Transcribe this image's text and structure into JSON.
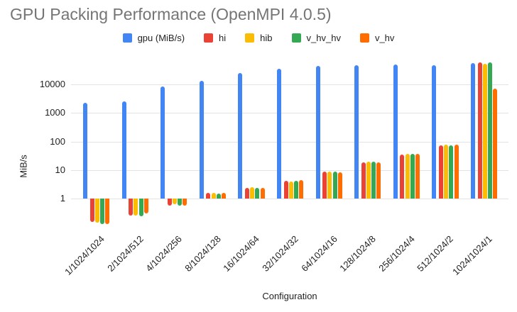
{
  "chart_data": {
    "type": "bar",
    "title": "GPU Packing Performance (OpenMPI 4.0.5)",
    "xlabel": "Configuration",
    "ylabel": "MiB/s",
    "y_scale": "log",
    "y_ticks": [
      1,
      10,
      100,
      1000,
      10000
    ],
    "ylim": [
      0.1,
      70000
    ],
    "grid": true,
    "legend_position": "top",
    "categories": [
      "1/1024/1024",
      "2/1024/512",
      "4/1024/256",
      "8/1024/128",
      "16/1024/64",
      "32/1024/32",
      "64/1024/16",
      "128/1024/8",
      "256/1024/4",
      "512/1024/2",
      "1024/1024/1"
    ],
    "series": [
      {
        "name": "gpu (MiB/s)",
        "color": "#4285F4",
        "values": [
          2200,
          2600,
          8400,
          13000,
          25000,
          36000,
          45000,
          48000,
          50000,
          47000,
          55000
        ]
      },
      {
        "name": "hi",
        "color": "#EA4335",
        "values": [
          0.15,
          0.26,
          0.58,
          1.6,
          2.4,
          4.3,
          9.0,
          19,
          35,
          71,
          58000
        ]
      },
      {
        "name": "hib",
        "color": "#FBBC04",
        "values": [
          0.14,
          0.25,
          0.62,
          1.6,
          2.5,
          4.0,
          8.6,
          20,
          37,
          76,
          54000
        ]
      },
      {
        "name": "v_hv_hv",
        "color": "#34A853",
        "values": [
          0.13,
          0.24,
          0.58,
          1.5,
          2.3,
          4.1,
          8.8,
          19.5,
          36,
          73,
          60000
        ]
      },
      {
        "name": "v_hv",
        "color": "#FF6D01",
        "values": [
          0.13,
          0.3,
          0.55,
          1.55,
          2.4,
          4.4,
          8.4,
          18.5,
          37,
          76,
          7000
        ]
      }
    ]
  },
  "colors": {
    "title_text": "#757575",
    "axis_text": "#1f1f1f",
    "gridline": "#e3e3e3",
    "background": "#ffffff"
  }
}
